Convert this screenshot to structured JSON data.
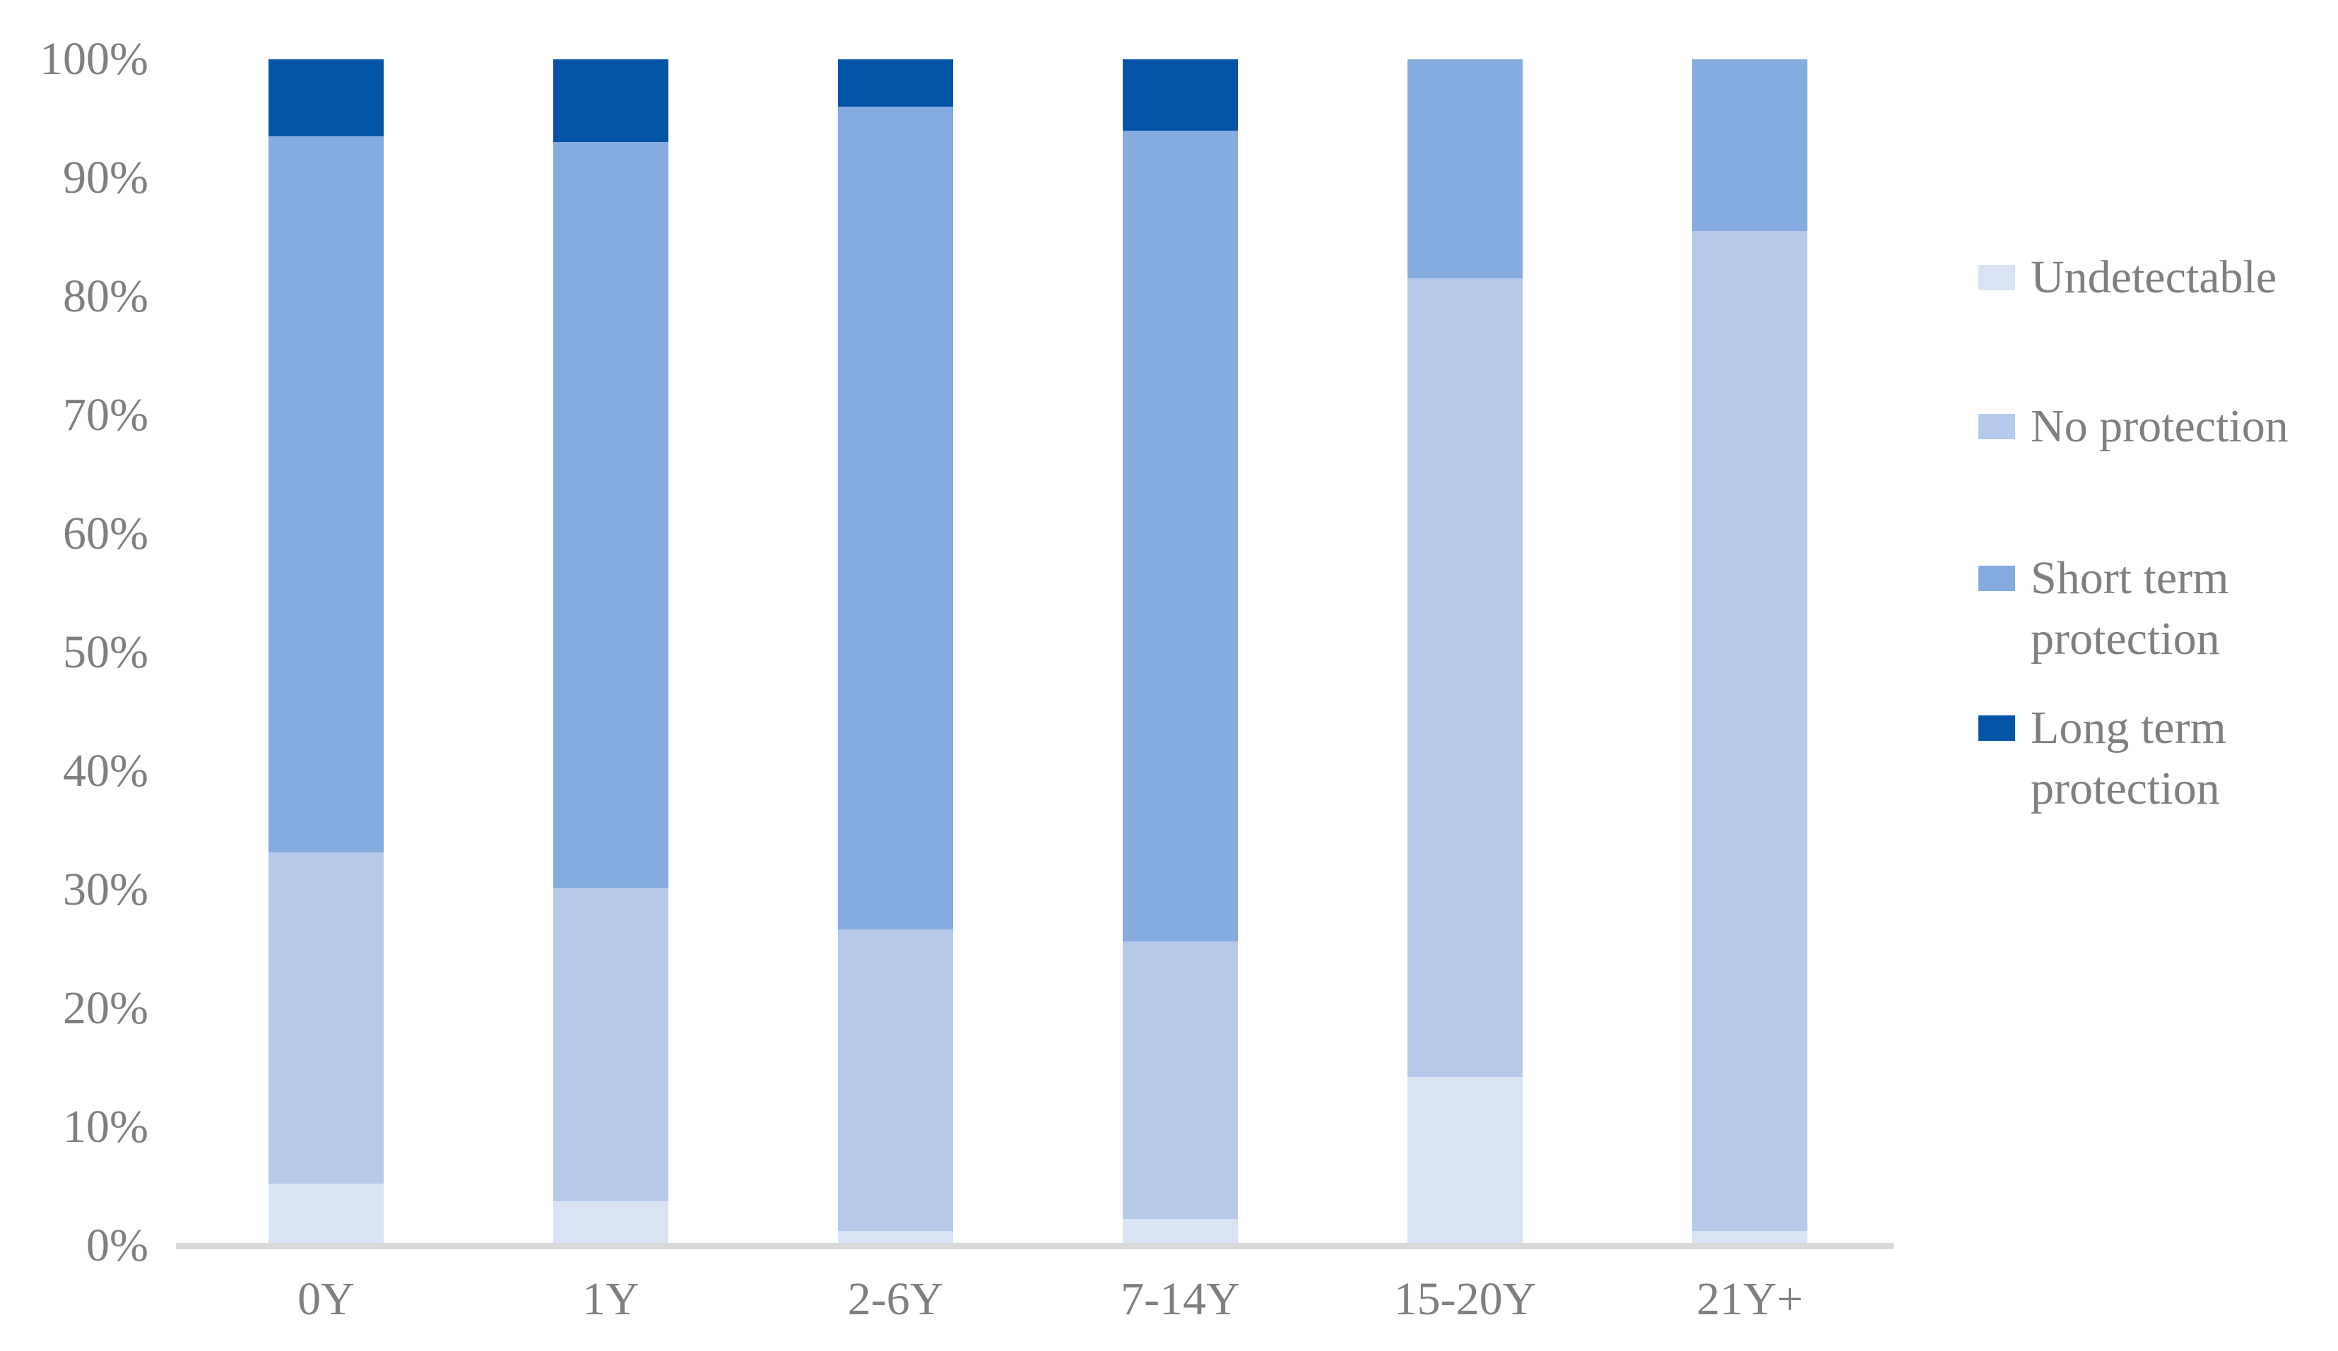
{
  "chart_data": {
    "type": "bar",
    "stacked": true,
    "title": "",
    "xlabel": "",
    "ylabel": "",
    "categories": [
      "0Y",
      "1Y",
      "2-6Y",
      "7-14Y",
      "15-20Y",
      "21Y+"
    ],
    "series": [
      {
        "name": "Undetectable",
        "color": "#D9E3F4",
        "values": [
          5,
          3.5,
          1,
          2,
          14,
          1
        ]
      },
      {
        "name": "No protection",
        "color": "#B5C9EB",
        "values": [
          28,
          26.5,
          25.5,
          23.5,
          67.5,
          84.5
        ]
      },
      {
        "name": "Short term protection",
        "color": "#85ABDF",
        "values": [
          60.5,
          63,
          69.5,
          68.5,
          18.5,
          14.5
        ]
      },
      {
        "name": "Long term protection",
        "color": "#0353A7",
        "values": [
          6.5,
          7,
          4,
          6,
          0,
          0
        ]
      }
    ],
    "ylim": [
      0,
      100
    ],
    "ytick_step": 10,
    "ytick_labels": [
      "100%",
      "90%",
      "80%",
      "70%",
      "60%",
      "50%",
      "40%",
      "30%",
      "20%",
      "10%",
      "0%"
    ],
    "grid": false,
    "legend_position": "right"
  },
  "legend": {
    "items": [
      {
        "label": "Undetectable",
        "color": "#D9E3F4"
      },
      {
        "label": "No protection",
        "color": "#B5C9EB"
      },
      {
        "label": "Short term\nprotection",
        "color": "#85ABDF"
      },
      {
        "label": "Long term\nprotection",
        "color": "#0353A7"
      }
    ]
  },
  "colors": {
    "axis_line": "#D9D9D9",
    "text": "#7F7F7F",
    "background": "#FFFFFF"
  }
}
